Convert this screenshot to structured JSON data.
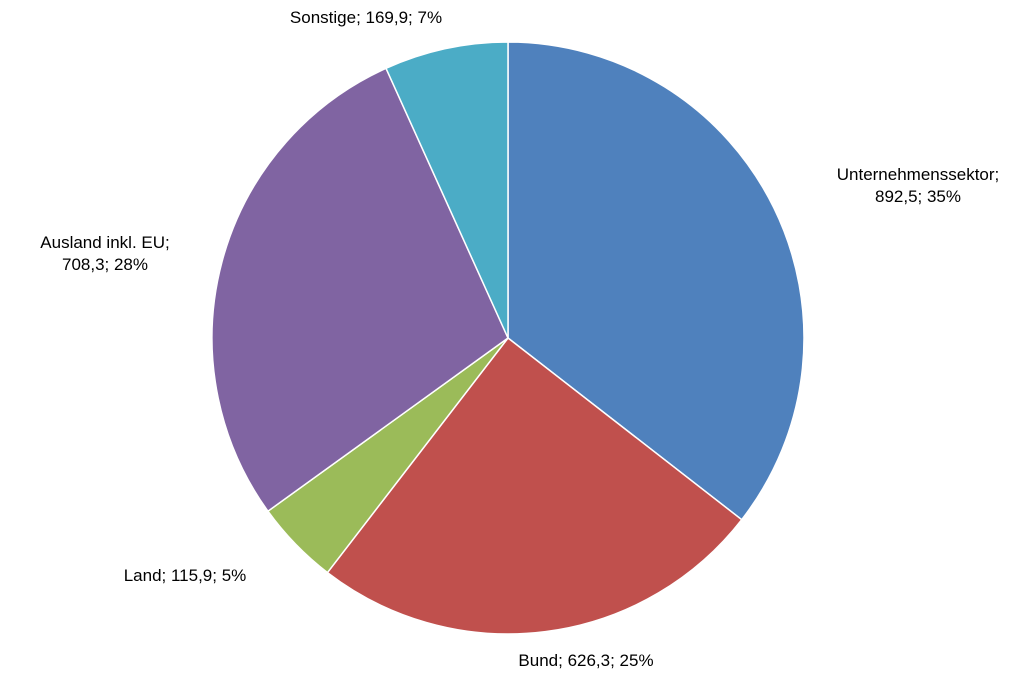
{
  "chart_data": {
    "type": "pie",
    "categories": [
      "Unternehmenssektor",
      "Bund",
      "Land",
      "Ausland inkl. EU",
      "Sonstige"
    ],
    "values": [
      892.5,
      626.3,
      115.9,
      708.3,
      169.9
    ],
    "value_labels": [
      "Unternehmenssektor;\n892,5; 35%",
      "Bund; 626,3; 25%",
      "Land; 115,9; 5%",
      "Ausland inkl. EU;\n708,3; 28%",
      "Sonstige; 169,9; 7%"
    ],
    "colors": [
      "#4f81bd",
      "#c0504d",
      "#9bbb59",
      "#8064a2",
      "#4bacc6"
    ]
  }
}
